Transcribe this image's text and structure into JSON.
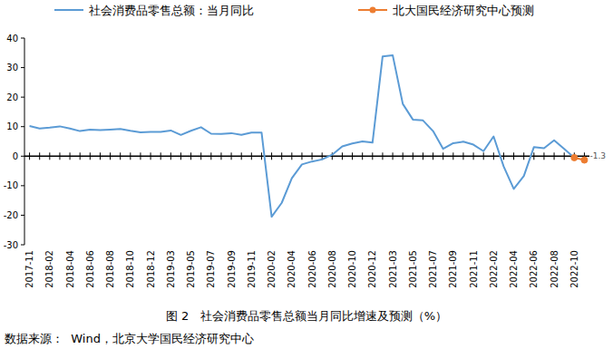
{
  "chart_data": {
    "type": "line",
    "title": "图 2   社会消费品零售总额当月同比增速及预测（%）",
    "source": "数据来源：  Wind，北京大学国民经济研究中心",
    "categories": [
      "2017-11",
      null,
      "2018-02",
      null,
      "2018-04",
      null,
      "2018-06",
      null,
      "2018-08",
      null,
      "2018-10",
      null,
      "2018-12",
      null,
      "2019-03",
      null,
      "2019-05",
      null,
      "2019-07",
      null,
      "2019-09",
      null,
      "2019-11",
      null,
      "2020-02",
      null,
      "2020-04",
      null,
      "2020-06",
      null,
      "2020-08",
      null,
      "2020-10",
      null,
      "2020-12",
      null,
      "2021-03",
      null,
      "2021-05",
      null,
      "2021-07",
      null,
      "2021-09",
      null,
      "2021-11",
      null,
      "2022-02",
      null,
      "2022-04",
      null,
      "2022-06",
      null,
      "2022-08",
      null,
      "2022-10",
      null
    ],
    "series": [
      {
        "name": "社会消费品零售总额：当月同比",
        "color": "#5b9bd5",
        "line_style": "solid",
        "values": [
          10.2,
          9.4,
          9.7,
          10.1,
          9.4,
          8.5,
          9.0,
          8.8,
          9.0,
          9.2,
          8.6,
          8.1,
          8.2,
          8.2,
          8.7,
          7.2,
          8.6,
          9.8,
          7.6,
          7.5,
          7.8,
          7.2,
          8.0,
          8.0,
          -20.5,
          -15.8,
          -7.5,
          -2.8,
          -1.8,
          -1.1,
          0.5,
          3.3,
          4.3,
          5.0,
          4.6,
          33.8,
          34.2,
          17.7,
          12.4,
          12.1,
          8.5,
          2.5,
          4.4,
          4.9,
          3.9,
          1.7,
          6.7,
          -3.5,
          -11.1,
          -6.7,
          3.1,
          2.7,
          5.4,
          2.5,
          -0.5,
          null
        ]
      },
      {
        "name": "北大国民经济研究中心预测",
        "color": "#ed7d31",
        "marker": "circle",
        "line_style": "solid",
        "values": [
          null,
          null,
          null,
          null,
          null,
          null,
          null,
          null,
          null,
          null,
          null,
          null,
          null,
          null,
          null,
          null,
          null,
          null,
          null,
          null,
          null,
          null,
          null,
          null,
          null,
          null,
          null,
          null,
          null,
          null,
          null,
          null,
          null,
          null,
          null,
          null,
          null,
          null,
          null,
          null,
          null,
          null,
          null,
          null,
          null,
          null,
          null,
          null,
          null,
          null,
          null,
          null,
          null,
          null,
          -0.5,
          -1.3
        ],
        "value_labels": [
          null,
          null,
          null,
          null,
          null,
          null,
          null,
          null,
          null,
          null,
          null,
          null,
          null,
          null,
          null,
          null,
          null,
          null,
          null,
          null,
          null,
          null,
          null,
          null,
          null,
          null,
          null,
          null,
          null,
          null,
          null,
          null,
          null,
          null,
          null,
          null,
          null,
          null,
          null,
          null,
          null,
          null,
          null,
          null,
          null,
          null,
          null,
          null,
          null,
          null,
          null,
          null,
          null,
          null,
          null,
          "-1.3"
        ]
      }
    ],
    "ylim": [
      -30,
      40
    ],
    "yticks": [
      -30,
      -20,
      -10,
      0,
      10,
      20,
      30,
      40
    ],
    "grid": false,
    "legend": "top"
  }
}
